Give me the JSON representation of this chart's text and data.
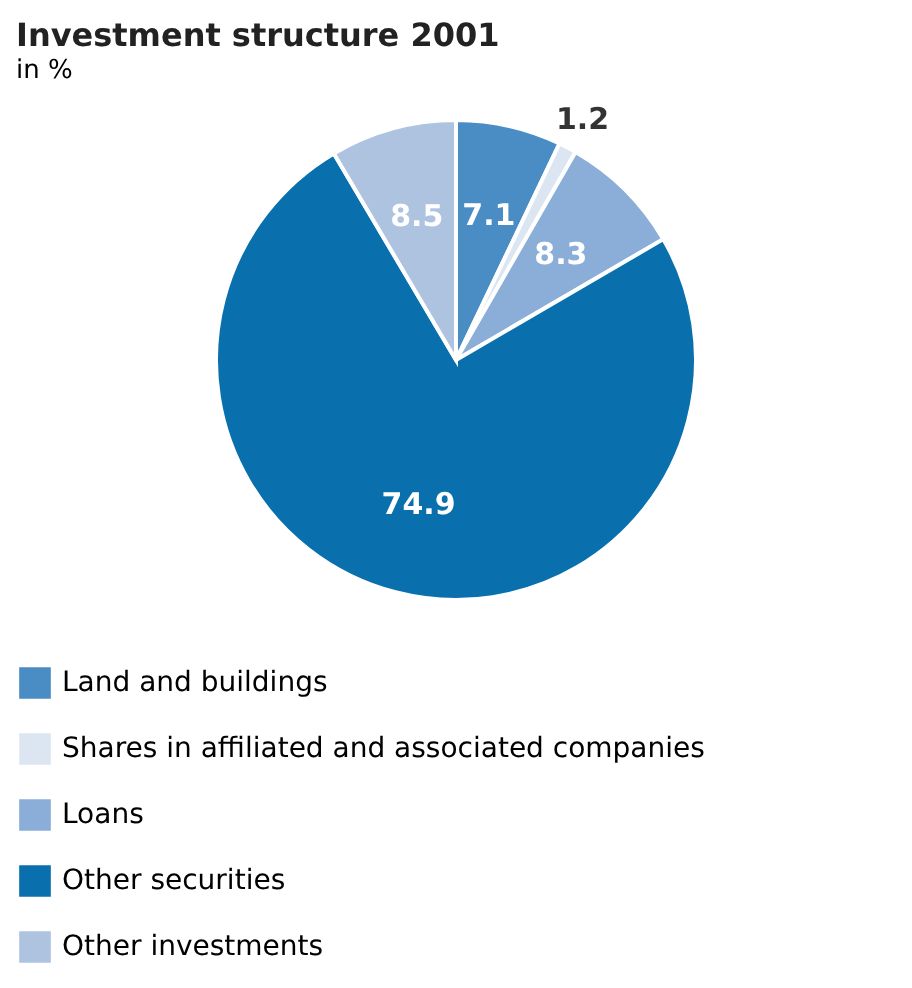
{
  "chart_data": {
    "type": "pie",
    "title": "Investment structure 2001",
    "subtitle": "in %",
    "categories": [
      "Land and buildings",
      "Shares in affiliated and associated companies",
      "Loans",
      "Other securities",
      "Other investments"
    ],
    "values": [
      7.1,
      1.2,
      8.3,
      74.9,
      8.5
    ],
    "colors": [
      "#4a8cc4",
      "#dce6f2",
      "#8aaed8",
      "#0a6fad",
      "#aec3e0"
    ],
    "data_labels": true,
    "legend": "bottom"
  }
}
